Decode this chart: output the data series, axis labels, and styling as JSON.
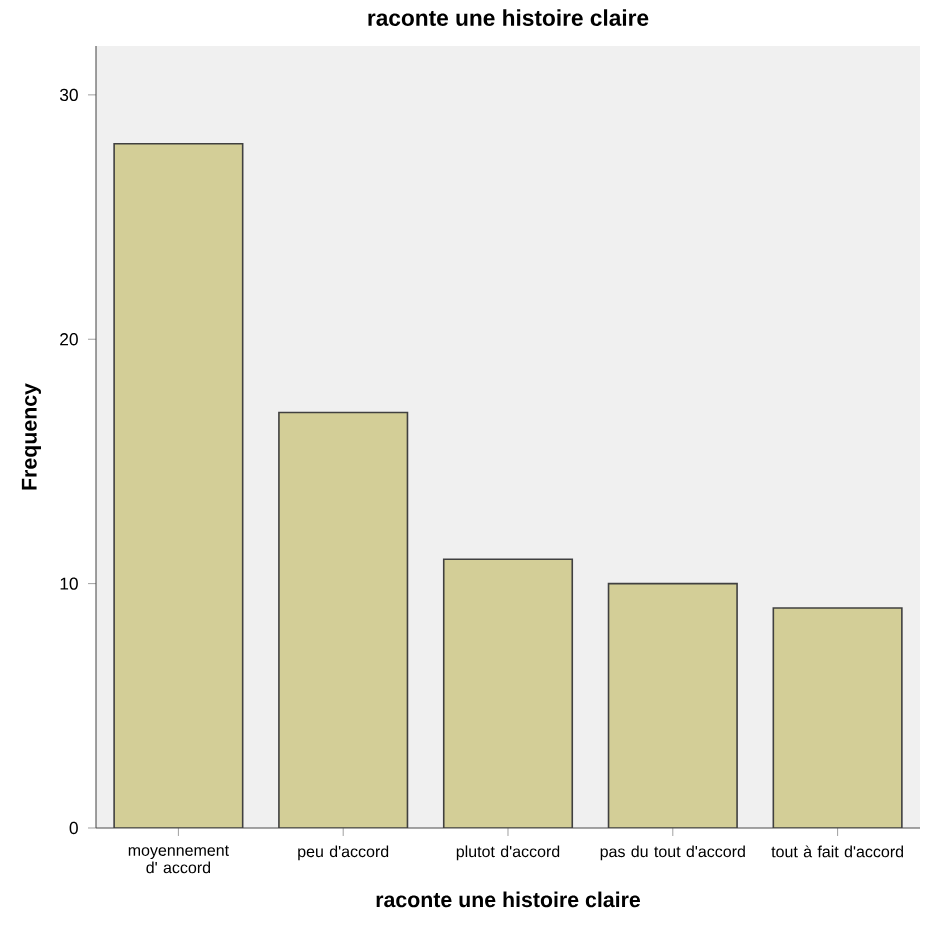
{
  "chart_data": {
    "type": "bar",
    "title": "raconte une histoire claire",
    "xlabel": "raconte une histoire claire",
    "ylabel": "Frequency",
    "categories": [
      "moyennement d' accord",
      "peu d'accord",
      "plutot d'accord",
      "pas du tout d'accord",
      "tout à fait d'accord"
    ],
    "values": [
      28,
      17,
      11,
      10,
      9
    ],
    "color": "#d3ce97",
    "ylim": [
      0,
      32
    ],
    "yticks": [
      0,
      10,
      20,
      30
    ]
  }
}
